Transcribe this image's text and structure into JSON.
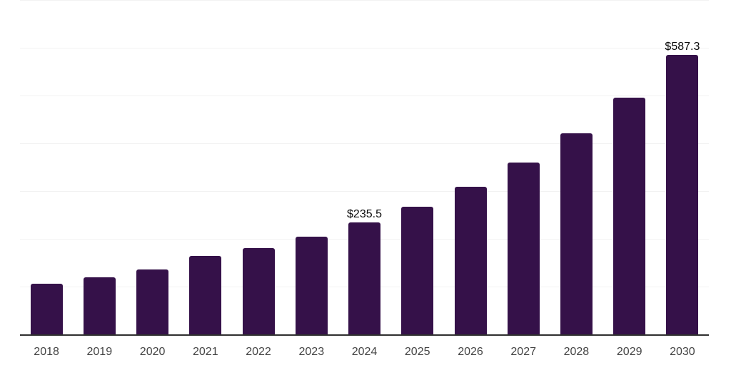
{
  "chart_data": {
    "type": "bar",
    "categories": [
      "2018",
      "2019",
      "2020",
      "2021",
      "2022",
      "2023",
      "2024",
      "2025",
      "2026",
      "2027",
      "2028",
      "2029",
      "2030"
    ],
    "values": [
      107,
      121,
      137,
      166,
      182,
      206,
      235.5,
      269,
      310,
      361,
      422,
      497,
      587.3
    ],
    "data_labels": {
      "2024": "$235.5",
      "2030": "$587.3"
    },
    "title": "",
    "xlabel": "",
    "ylabel": "",
    "ylim": [
      0,
      700
    ],
    "gridline_interval": 100,
    "grid": "horizontal",
    "y_tick_labels_visible": false,
    "legend_position": "none",
    "colors": {
      "bar": "#351149",
      "gridline": "#f2f2f2",
      "axis_line": "#2f2f2f",
      "tick_label": "#444444",
      "data_label": "#0a0a0a"
    }
  }
}
